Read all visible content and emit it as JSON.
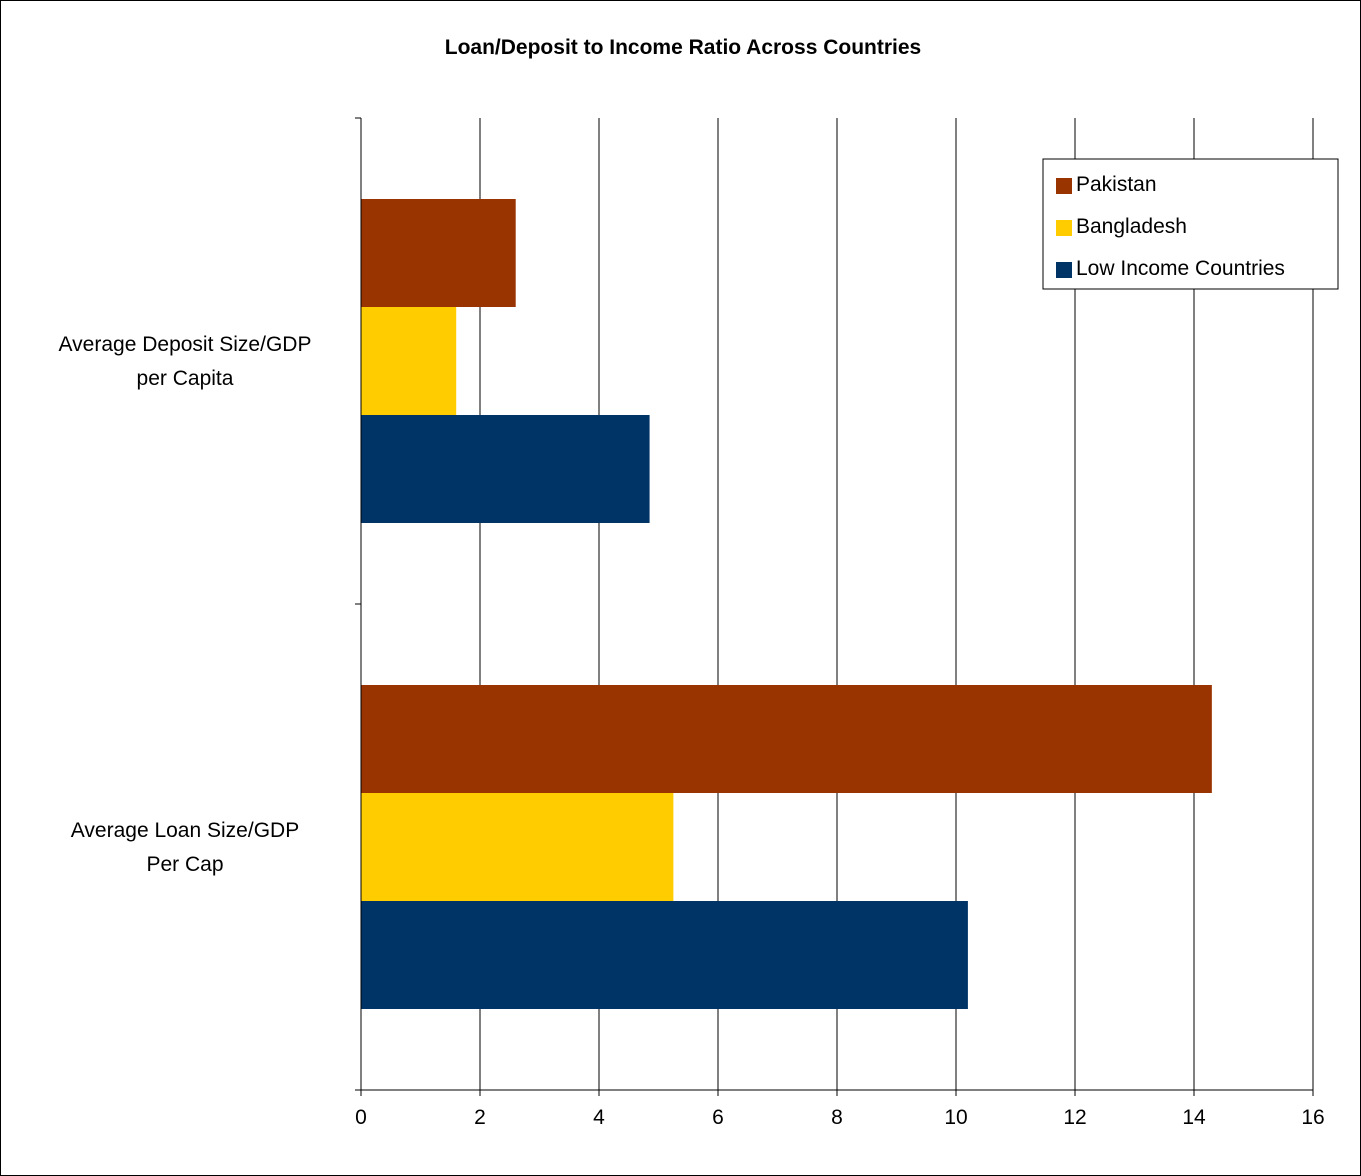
{
  "chart_data": {
    "type": "bar",
    "orientation": "horizontal",
    "title": "Loan/Deposit to Income Ratio Across Countries",
    "xlabel": "",
    "ylabel": "",
    "xlim": [
      0,
      16
    ],
    "x_ticks": [
      "0",
      "2",
      "4",
      "6",
      "8",
      "10",
      "12",
      "14",
      "16"
    ],
    "grid": true,
    "legend_position": "top-right",
    "categories": [
      [
        "Average Deposit Size/GDP",
        "per Capita"
      ],
      [
        "Average Loan Size/GDP",
        "Per Cap"
      ]
    ],
    "series": [
      {
        "name": "Pakistan",
        "color": "#993300",
        "values": [
          2.6,
          14.3
        ]
      },
      {
        "name": "Bangladesh",
        "color": "#FFCC00",
        "values": [
          1.6,
          5.25
        ]
      },
      {
        "name": "Low Income Countries",
        "color": "#003366",
        "values": [
          4.85,
          10.2
        ]
      }
    ]
  }
}
